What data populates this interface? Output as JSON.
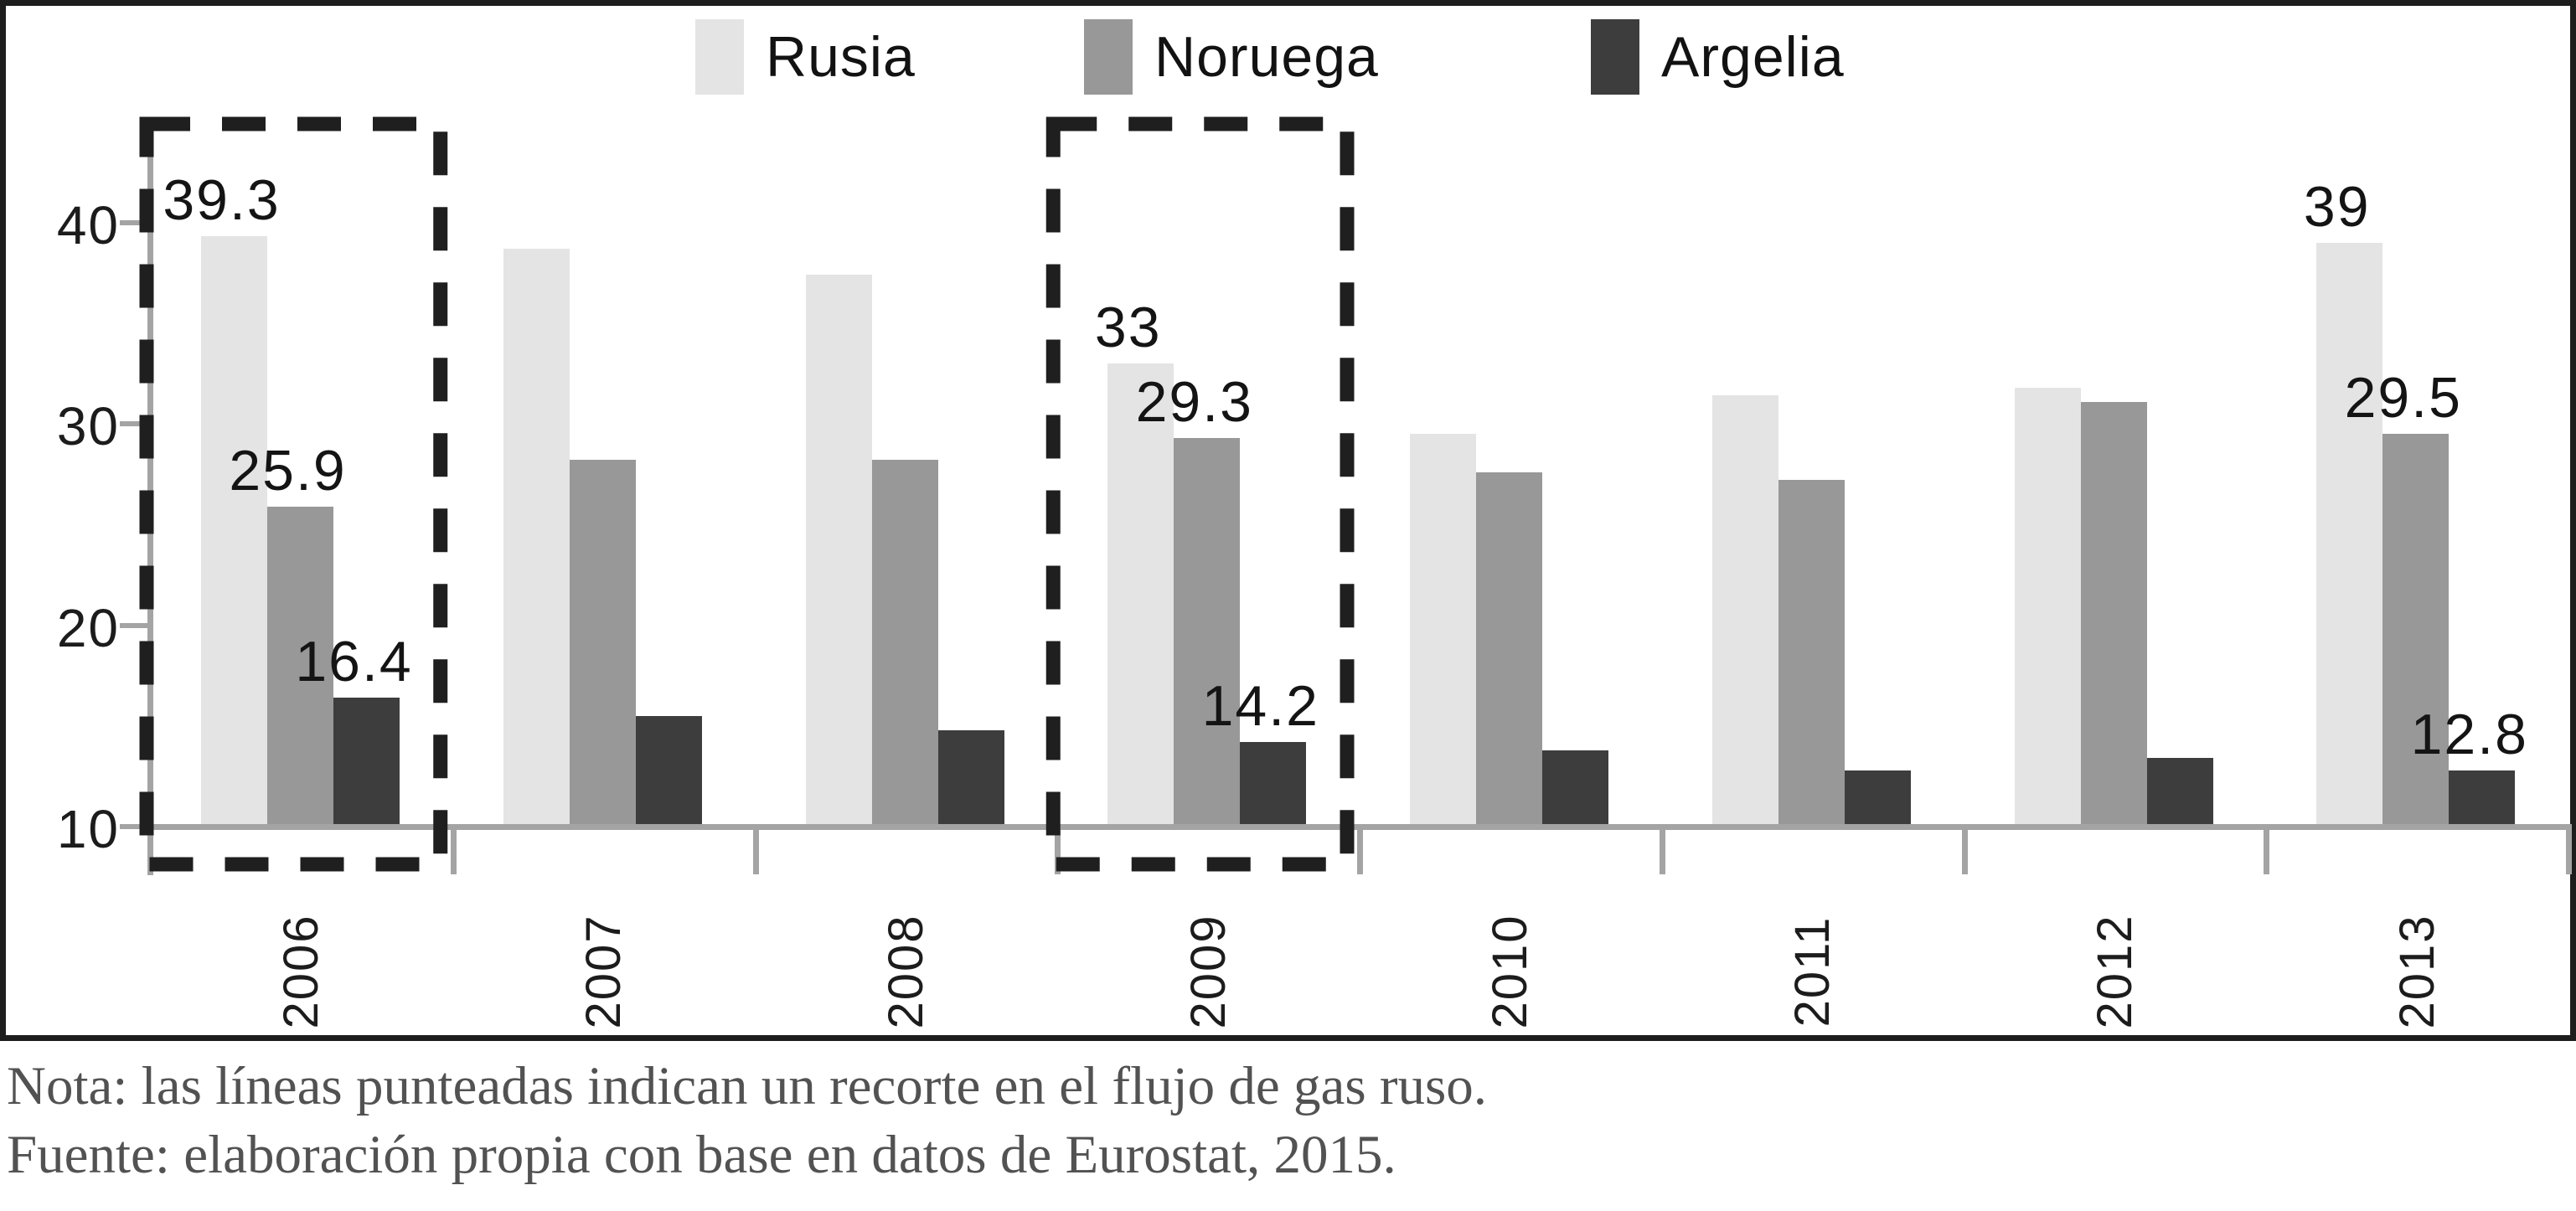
{
  "figure": {
    "note_line1": "Nota: las líneas punteadas indican un recorte en el flujo de gas ruso.",
    "note_line2": "Fuente: elaboración propia con base en datos de Eurostat, 2015."
  },
  "colors": {
    "rusia": "#e4e4e4",
    "noruega": "#989898",
    "argelia": "#3d3d3d",
    "axis": "#a4a4a4",
    "frame": "#1d1d1d",
    "dashed_box": "#1f1f1f",
    "label_text": "#141414",
    "note_text": "#525252"
  },
  "chart_data": {
    "type": "bar",
    "title": "",
    "categories": [
      "2006",
      "2007",
      "2008",
      "2009",
      "2010",
      "2011",
      "2012",
      "2013"
    ],
    "series": [
      {
        "name": "Rusia",
        "color_key": "rusia",
        "values": [
          39.3,
          38.7,
          37.4,
          33,
          29.5,
          31.4,
          31.8,
          39
        ],
        "labels": [
          "39.3",
          null,
          null,
          "33",
          null,
          null,
          null,
          "39"
        ]
      },
      {
        "name": "Noruega",
        "color_key": "noruega",
        "values": [
          25.9,
          28.2,
          28.2,
          29.3,
          27.6,
          27.2,
          31.1,
          29.5
        ],
        "labels": [
          "25.9",
          null,
          null,
          "29.3",
          null,
          null,
          null,
          "29.5"
        ]
      },
      {
        "name": "Argelia",
        "color_key": "argelia",
        "values": [
          16.4,
          15.5,
          14.8,
          14.2,
          13.8,
          12.8,
          13.4,
          12.8
        ],
        "labels": [
          "16.4",
          null,
          null,
          "14.2",
          null,
          null,
          null,
          "12.8"
        ]
      }
    ],
    "y_ticks": [
      "40",
      "30",
      "20",
      "10"
    ],
    "y_axis_min": 10,
    "y_axis_max": 44,
    "grid": false,
    "legend_position": "top",
    "highlighted_categories": [
      "2006",
      "2009"
    ],
    "highlight_meaning": "recorte en el flujo de gas ruso"
  }
}
